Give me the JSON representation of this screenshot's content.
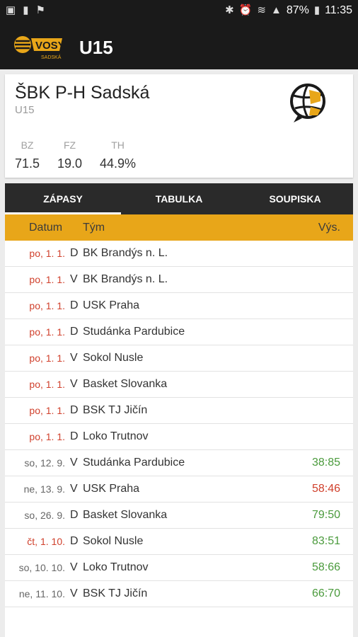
{
  "status_bar": {
    "left_icons": [
      "image-icon",
      "chart-icon",
      "flag-icon"
    ],
    "right_icons": [
      "bluetooth-icon",
      "alarm-icon",
      "wifi-icon",
      "signal-icon",
      "battery-icon"
    ],
    "battery": "87%",
    "time": "11:35"
  },
  "app_bar": {
    "title": "U15",
    "logo_text": "VOSY",
    "logo_sub": "SADSKÁ"
  },
  "team": {
    "name": "ŠBK P-H Sadská",
    "category": "U15",
    "stats": [
      {
        "label": "BZ",
        "value": "71.5"
      },
      {
        "label": "FZ",
        "value": "19.0"
      },
      {
        "label": "TH",
        "value": "44.9%"
      }
    ]
  },
  "tabs": [
    {
      "label": "ZÁPASY",
      "active": true
    },
    {
      "label": "TABULKA",
      "active": false
    },
    {
      "label": "SOUPISKA",
      "active": false
    }
  ],
  "table": {
    "headers": {
      "date": "Datum",
      "team": "Tým",
      "score": "Výs."
    },
    "rows": [
      {
        "date": "po, 1. 1.",
        "ha": "D",
        "opponent": "BK Brandýs n. L.",
        "score": "",
        "date_color": "#d0402c",
        "score_color": ""
      },
      {
        "date": "po, 1. 1.",
        "ha": "V",
        "opponent": "BK Brandýs n. L.",
        "score": "",
        "date_color": "#d0402c",
        "score_color": ""
      },
      {
        "date": "po, 1. 1.",
        "ha": "D",
        "opponent": "USK Praha",
        "score": "",
        "date_color": "#d0402c",
        "score_color": ""
      },
      {
        "date": "po, 1. 1.",
        "ha": "D",
        "opponent": "Studánka Pardubice",
        "score": "",
        "date_color": "#d0402c",
        "score_color": ""
      },
      {
        "date": "po, 1. 1.",
        "ha": "V",
        "opponent": "Sokol Nusle",
        "score": "",
        "date_color": "#d0402c",
        "score_color": ""
      },
      {
        "date": "po, 1. 1.",
        "ha": "V",
        "opponent": "Basket Slovanka",
        "score": "",
        "date_color": "#d0402c",
        "score_color": ""
      },
      {
        "date": "po, 1. 1.",
        "ha": "D",
        "opponent": "BSK TJ Jičín",
        "score": "",
        "date_color": "#d0402c",
        "score_color": ""
      },
      {
        "date": "po, 1. 1.",
        "ha": "D",
        "opponent": "Loko Trutnov",
        "score": "",
        "date_color": "#d0402c",
        "score_color": ""
      },
      {
        "date": "so, 12. 9.",
        "ha": "V",
        "opponent": "Studánka Pardubice",
        "score": "38:85",
        "date_color": "#666666",
        "score_color": "#4a9a3c"
      },
      {
        "date": "ne, 13. 9.",
        "ha": "V",
        "opponent": "USK Praha",
        "score": "58:46",
        "date_color": "#666666",
        "score_color": "#d0402c"
      },
      {
        "date": "so, 26. 9.",
        "ha": "D",
        "opponent": "Basket Slovanka",
        "score": "79:50",
        "date_color": "#666666",
        "score_color": "#4a9a3c"
      },
      {
        "date": "čt, 1. 10.",
        "ha": "D",
        "opponent": "Sokol Nusle",
        "score": "83:51",
        "date_color": "#d0402c",
        "score_color": "#4a9a3c"
      },
      {
        "date": "so, 10. 10.",
        "ha": "V",
        "opponent": "Loko Trutnov",
        "score": "58:66",
        "date_color": "#666666",
        "score_color": "#4a9a3c"
      },
      {
        "date": "ne, 11. 10.",
        "ha": "V",
        "opponent": "BSK TJ Jičín",
        "score": "66:70",
        "date_color": "#666666",
        "score_color": "#4a9a3c"
      }
    ]
  },
  "colors": {
    "accent": "#e8a619",
    "dark": "#1a1a1a",
    "win": "#4a9a3c",
    "loss": "#d0402c"
  }
}
